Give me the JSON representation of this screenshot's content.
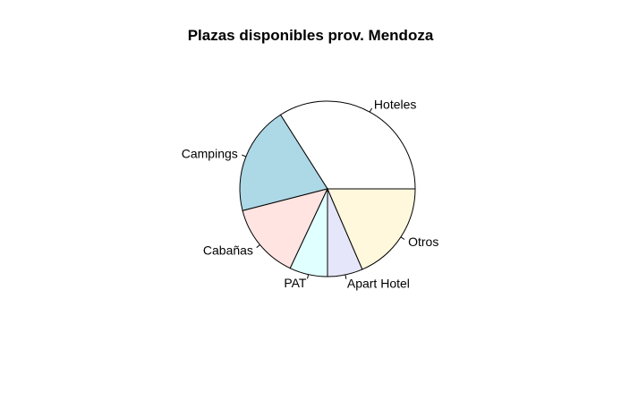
{
  "chart_data": {
    "type": "pie",
    "title": "Plazas disponibles prov. Mendoza",
    "start_angle_deg": 0,
    "direction": "counterclockwise",
    "slices": [
      {
        "label": "Hoteles",
        "value": 34.0,
        "color": "#FFFFFF"
      },
      {
        "label": "Campings",
        "value": 20.0,
        "color": "#ADD8E6"
      },
      {
        "label": "Cabañas",
        "value": 14.0,
        "color": "#FFE4E1"
      },
      {
        "label": "PAT",
        "value": 7.0,
        "color": "#E0FFFF"
      },
      {
        "label": "Apart Hotel",
        "value": 6.5,
        "color": "#E6E6FA"
      },
      {
        "label": "Otros",
        "value": 18.5,
        "color": "#FFF8DC"
      }
    ]
  }
}
